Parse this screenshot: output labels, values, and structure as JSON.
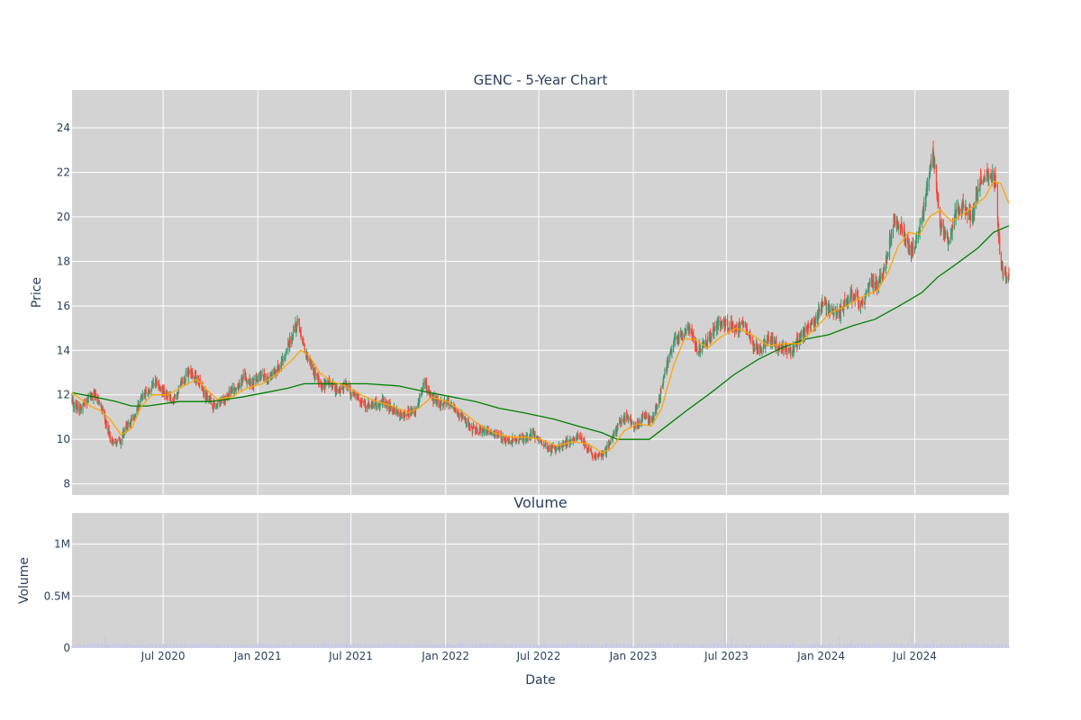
{
  "chart_data": [
    {
      "type": "candlestick",
      "title": "GENC - 5-Year Chart",
      "ylabel": "Price",
      "xlabel": "",
      "ylim": [
        7.5,
        25.7
      ],
      "xlim": [
        "2020-01-06",
        "2024-12-31"
      ],
      "y_ticks": [
        8,
        10,
        12,
        14,
        16,
        18,
        20,
        22,
        24
      ],
      "grid": true,
      "background": "#d3d3d3",
      "colors": {
        "increasing": "#3d9970",
        "decreasing": "#ff4136",
        "ma_short": "#ffa500",
        "ma_long": "#008000"
      },
      "close_path": [
        [
          "2020-01-06",
          11.7
        ],
        [
          "2020-01-20",
          11.3
        ],
        [
          "2020-02-05",
          11.8
        ],
        [
          "2020-02-20",
          12.0
        ],
        [
          "2020-03-05",
          11.3
        ],
        [
          "2020-03-20",
          10.0
        ],
        [
          "2020-04-05",
          9.8
        ],
        [
          "2020-04-20",
          10.5
        ],
        [
          "2020-05-05",
          11.0
        ],
        [
          "2020-05-20",
          11.9
        ],
        [
          "2020-06-05",
          12.3
        ],
        [
          "2020-06-20",
          12.6
        ],
        [
          "2020-07-05",
          12.0
        ],
        [
          "2020-07-20",
          11.8
        ],
        [
          "2020-08-05",
          12.5
        ],
        [
          "2020-08-20",
          13.0
        ],
        [
          "2020-09-05",
          12.7
        ],
        [
          "2020-09-20",
          12.0
        ],
        [
          "2020-10-05",
          11.5
        ],
        [
          "2020-10-20",
          11.7
        ],
        [
          "2020-11-05",
          12.0
        ],
        [
          "2020-11-20",
          12.3
        ],
        [
          "2020-12-05",
          12.8
        ],
        [
          "2020-12-20",
          12.5
        ],
        [
          "2021-01-05",
          12.9
        ],
        [
          "2021-01-20",
          12.6
        ],
        [
          "2021-02-05",
          13.1
        ],
        [
          "2021-02-20",
          13.6
        ],
        [
          "2021-03-05",
          14.5
        ],
        [
          "2021-03-20",
          15.3
        ],
        [
          "2021-04-05",
          13.8
        ],
        [
          "2021-04-20",
          13.0
        ],
        [
          "2021-05-05",
          12.3
        ],
        [
          "2021-05-20",
          12.6
        ],
        [
          "2021-06-05",
          12.2
        ],
        [
          "2021-06-20",
          12.4
        ],
        [
          "2021-07-05",
          12.0
        ],
        [
          "2021-07-20",
          11.7
        ],
        [
          "2021-08-05",
          11.5
        ],
        [
          "2021-08-20",
          11.6
        ],
        [
          "2021-09-05",
          11.7
        ],
        [
          "2021-09-20",
          11.3
        ],
        [
          "2021-10-05",
          11.1
        ],
        [
          "2021-10-20",
          11.2
        ],
        [
          "2021-11-05",
          11.4
        ],
        [
          "2021-11-20",
          12.5
        ],
        [
          "2021-12-05",
          11.9
        ],
        [
          "2021-12-20",
          11.6
        ],
        [
          "2022-01-05",
          11.7
        ],
        [
          "2022-01-20",
          11.3
        ],
        [
          "2022-02-05",
          11.0
        ],
        [
          "2022-02-20",
          10.5
        ],
        [
          "2022-03-05",
          10.4
        ],
        [
          "2022-03-20",
          10.4
        ],
        [
          "2022-04-05",
          10.2
        ],
        [
          "2022-04-20",
          10.1
        ],
        [
          "2022-05-05",
          9.9
        ],
        [
          "2022-05-20",
          10.0
        ],
        [
          "2022-06-05",
          10.1
        ],
        [
          "2022-06-20",
          10.3
        ],
        [
          "2022-07-05",
          9.9
        ],
        [
          "2022-07-20",
          9.6
        ],
        [
          "2022-08-05",
          9.6
        ],
        [
          "2022-08-20",
          9.8
        ],
        [
          "2022-09-05",
          10.0
        ],
        [
          "2022-09-20",
          10.1
        ],
        [
          "2022-10-05",
          9.5
        ],
        [
          "2022-10-20",
          9.2
        ],
        [
          "2022-11-05",
          9.4
        ],
        [
          "2022-11-20",
          10.0
        ],
        [
          "2022-12-05",
          10.7
        ],
        [
          "2022-12-20",
          11.0
        ],
        [
          "2023-01-05",
          10.6
        ],
        [
          "2023-01-20",
          11.0
        ],
        [
          "2023-02-05",
          10.8
        ],
        [
          "2023-02-20",
          11.8
        ],
        [
          "2023-03-05",
          13.2
        ],
        [
          "2023-03-20",
          14.4
        ],
        [
          "2023-04-05",
          14.7
        ],
        [
          "2023-04-20",
          15.0
        ],
        [
          "2023-05-05",
          14.0
        ],
        [
          "2023-05-20",
          14.3
        ],
        [
          "2023-06-05",
          14.8
        ],
        [
          "2023-06-20",
          15.3
        ],
        [
          "2023-07-05",
          15.1
        ],
        [
          "2023-07-20",
          15.0
        ],
        [
          "2023-08-05",
          15.2
        ],
        [
          "2023-08-20",
          14.2
        ],
        [
          "2023-09-05",
          14.0
        ],
        [
          "2023-09-20",
          14.6
        ],
        [
          "2023-10-05",
          14.2
        ],
        [
          "2023-10-20",
          14.1
        ],
        [
          "2023-11-05",
          14.0
        ],
        [
          "2023-11-20",
          14.5
        ],
        [
          "2023-12-05",
          15.0
        ],
        [
          "2023-12-20",
          15.3
        ],
        [
          "2024-01-05",
          16.2
        ],
        [
          "2024-01-20",
          15.8
        ],
        [
          "2024-02-05",
          15.6
        ],
        [
          "2024-02-20",
          16.3
        ],
        [
          "2024-03-05",
          16.5
        ],
        [
          "2024-03-20",
          16.0
        ],
        [
          "2024-04-05",
          16.9
        ],
        [
          "2024-04-20",
          17.0
        ],
        [
          "2024-05-05",
          17.6
        ],
        [
          "2024-05-20",
          19.8
        ],
        [
          "2024-06-05",
          19.6
        ],
        [
          "2024-06-20",
          18.5
        ],
        [
          "2024-07-05",
          18.8
        ],
        [
          "2024-07-20",
          20.5
        ],
        [
          "2024-08-05",
          23.0
        ],
        [
          "2024-08-20",
          19.5
        ],
        [
          "2024-09-05",
          19.0
        ],
        [
          "2024-09-20",
          20.3
        ],
        [
          "2024-10-05",
          20.5
        ],
        [
          "2024-10-20",
          20.0
        ],
        [
          "2024-11-05",
          21.5
        ],
        [
          "2024-11-20",
          22.0
        ],
        [
          "2024-12-05",
          21.6
        ],
        [
          "2024-12-15",
          17.8
        ],
        [
          "2024-12-31",
          17.2
        ]
      ],
      "ma_short": [
        [
          "2020-01-06",
          12.1
        ],
        [
          "2020-02-10",
          11.5
        ],
        [
          "2020-03-01",
          11.3
        ],
        [
          "2020-03-20",
          10.9
        ],
        [
          "2020-04-10",
          10.2
        ],
        [
          "2020-05-01",
          10.5
        ],
        [
          "2020-05-20",
          11.5
        ],
        [
          "2020-06-10",
          12.0
        ],
        [
          "2020-07-10",
          12.0
        ],
        [
          "2020-08-10",
          12.4
        ],
        [
          "2020-09-05",
          12.7
        ],
        [
          "2020-09-25",
          12.2
        ],
        [
          "2020-10-15",
          11.8
        ],
        [
          "2020-11-10",
          11.9
        ],
        [
          "2020-12-10",
          12.3
        ],
        [
          "2021-01-10",
          12.5
        ],
        [
          "2021-02-10",
          13.0
        ],
        [
          "2021-03-10",
          13.6
        ],
        [
          "2021-03-25",
          14.0
        ],
        [
          "2021-04-10",
          13.8
        ],
        [
          "2021-05-01",
          13.0
        ],
        [
          "2021-05-25",
          12.6
        ],
        [
          "2021-06-20",
          12.4
        ],
        [
          "2021-07-20",
          12.0
        ],
        [
          "2021-08-20",
          11.7
        ],
        [
          "2021-09-20",
          11.5
        ],
        [
          "2021-10-20",
          11.2
        ],
        [
          "2021-11-10",
          11.4
        ],
        [
          "2021-12-05",
          11.9
        ],
        [
          "2022-01-05",
          11.7
        ],
        [
          "2022-02-05",
          11.2
        ],
        [
          "2022-03-05",
          10.7
        ],
        [
          "2022-04-05",
          10.3
        ],
        [
          "2022-05-05",
          10.1
        ],
        [
          "2022-06-05",
          10.1
        ],
        [
          "2022-07-05",
          10.0
        ],
        [
          "2022-08-05",
          9.7
        ],
        [
          "2022-09-05",
          9.9
        ],
        [
          "2022-10-05",
          9.8
        ],
        [
          "2022-11-01",
          9.4
        ],
        [
          "2022-11-20",
          9.6
        ],
        [
          "2022-12-15",
          10.4
        ],
        [
          "2023-01-10",
          10.7
        ],
        [
          "2023-02-05",
          10.6
        ],
        [
          "2023-02-25",
          11.4
        ],
        [
          "2023-03-20",
          13.3
        ],
        [
          "2023-04-10",
          14.5
        ],
        [
          "2023-05-01",
          14.5
        ],
        [
          "2023-05-25",
          14.1
        ],
        [
          "2023-06-20",
          14.6
        ],
        [
          "2023-07-20",
          15.0
        ],
        [
          "2023-08-20",
          14.7
        ],
        [
          "2023-09-20",
          14.2
        ],
        [
          "2023-10-20",
          14.3
        ],
        [
          "2023-11-20",
          14.3
        ],
        [
          "2023-12-20",
          15.0
        ],
        [
          "2024-01-20",
          15.7
        ],
        [
          "2024-02-20",
          16.0
        ],
        [
          "2024-03-20",
          16.4
        ],
        [
          "2024-04-20",
          16.7
        ],
        [
          "2024-05-10",
          17.5
        ],
        [
          "2024-05-30",
          18.7
        ],
        [
          "2024-06-20",
          19.3
        ],
        [
          "2024-07-10",
          19.2
        ],
        [
          "2024-07-30",
          20.0
        ],
        [
          "2024-08-20",
          20.3
        ],
        [
          "2024-09-10",
          19.8
        ],
        [
          "2024-10-01",
          20.1
        ],
        [
          "2024-10-25",
          20.5
        ],
        [
          "2024-11-15",
          20.9
        ],
        [
          "2024-12-01",
          21.6
        ],
        [
          "2024-12-15",
          21.5
        ],
        [
          "2024-12-31",
          20.6
        ]
      ],
      "ma_long": [
        [
          "2020-01-06",
          12.1
        ],
        [
          "2020-02-20",
          11.9
        ],
        [
          "2020-04-01",
          11.7
        ],
        [
          "2020-05-01",
          11.5
        ],
        [
          "2020-06-01",
          11.5
        ],
        [
          "2020-07-01",
          11.6
        ],
        [
          "2020-08-01",
          11.7
        ],
        [
          "2020-10-01",
          11.7
        ],
        [
          "2020-12-01",
          11.9
        ],
        [
          "2021-01-15",
          12.1
        ],
        [
          "2021-03-01",
          12.3
        ],
        [
          "2021-04-01",
          12.5
        ],
        [
          "2021-06-01",
          12.5
        ],
        [
          "2021-08-01",
          12.5
        ],
        [
          "2021-10-01",
          12.4
        ],
        [
          "2021-12-01",
          12.1
        ],
        [
          "2022-01-15",
          11.9
        ],
        [
          "2022-03-01",
          11.7
        ],
        [
          "2022-04-15",
          11.4
        ],
        [
          "2022-06-01",
          11.2
        ],
        [
          "2022-08-01",
          10.9
        ],
        [
          "2022-09-15",
          10.6
        ],
        [
          "2022-11-01",
          10.3
        ],
        [
          "2022-12-01",
          10.0
        ],
        [
          "2023-01-01",
          10.0
        ],
        [
          "2023-02-01",
          10.0
        ],
        [
          "2023-03-01",
          10.5
        ],
        [
          "2023-04-15",
          11.3
        ],
        [
          "2023-06-01",
          12.1
        ],
        [
          "2023-07-15",
          12.9
        ],
        [
          "2023-09-01",
          13.6
        ],
        [
          "2023-10-15",
          14.1
        ],
        [
          "2023-12-01",
          14.5
        ],
        [
          "2024-01-15",
          14.7
        ],
        [
          "2024-03-01",
          15.1
        ],
        [
          "2024-04-15",
          15.4
        ],
        [
          "2024-06-01",
          16.0
        ],
        [
          "2024-07-15",
          16.6
        ],
        [
          "2024-08-15",
          17.3
        ],
        [
          "2024-09-15",
          17.8
        ],
        [
          "2024-11-01",
          18.6
        ],
        [
          "2024-12-01",
          19.3
        ],
        [
          "2024-12-31",
          19.6
        ]
      ]
    },
    {
      "type": "bar",
      "title": "Volume",
      "ylabel": "Volume",
      "xlabel": "Date",
      "ylim": [
        0,
        1300000
      ],
      "y_ticks": [
        0,
        500000,
        1000000
      ],
      "y_tick_labels": [
        "0",
        "0.5M",
        "1M"
      ],
      "x_ticks": [
        "2020-07-01",
        "2021-01-01",
        "2021-07-01",
        "2022-01-01",
        "2022-07-01",
        "2023-01-01",
        "2023-07-01",
        "2024-01-01",
        "2024-07-01"
      ],
      "x_tick_labels": [
        "Jul 2020",
        "Jan 2021",
        "Jul 2021",
        "Jan 2022",
        "Jul 2022",
        "Jan 2023",
        "Jul 2023",
        "Jan 2024",
        "Jul 2024"
      ],
      "grid": true,
      "background": "#d3d3d3",
      "bar_color": "#c9c9e8",
      "base_volume": 30000,
      "spikes": [
        [
          "2020-03-10",
          110000
        ],
        [
          "2020-06-20",
          60000
        ],
        [
          "2021-04-10",
          150000
        ],
        [
          "2021-05-10",
          90000
        ],
        [
          "2021-06-25",
          1250000
        ],
        [
          "2023-06-28",
          1170000
        ],
        [
          "2023-07-10",
          110000
        ],
        [
          "2024-02-05",
          110000
        ],
        [
          "2024-03-01",
          90000
        ],
        [
          "2024-06-25",
          120000
        ],
        [
          "2024-08-05",
          90000
        ]
      ]
    }
  ]
}
